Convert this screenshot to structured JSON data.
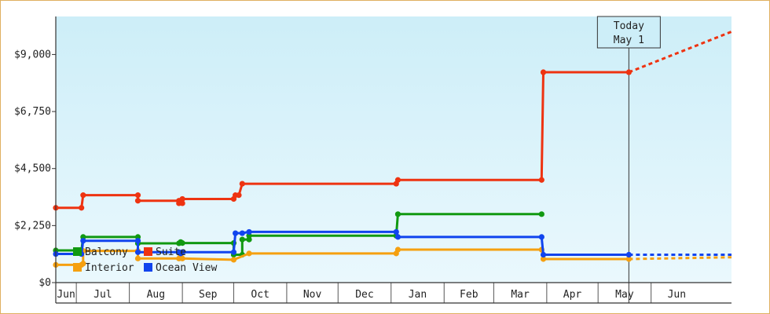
{
  "colors": {
    "background_top": "#cdeef8",
    "background_bottom": "#eaf8fd",
    "frame_border": "#e0b060",
    "axis": "#333333",
    "grid_month": "#555555"
  },
  "today_marker": {
    "line1": "Today",
    "line2": "May 1",
    "date": "2024-05-01"
  },
  "chart_data": {
    "type": "line",
    "step": true,
    "title": "",
    "xlabel": "",
    "ylabel": "",
    "x_range": [
      "2023-06-01",
      "2024-06-30"
    ],
    "ylim": [
      0,
      10500
    ],
    "yticks": [
      0,
      2250,
      4500,
      6750,
      9000
    ],
    "ytick_labels": [
      "$0",
      "$2,250",
      "$4,500",
      "$6,750",
      "$9,000"
    ],
    "months": [
      {
        "label": "Jun",
        "start": "2023-06-01",
        "end": "2023-06-13"
      },
      {
        "label": "Jul",
        "start": "2023-06-13",
        "end": "2023-07-14"
      },
      {
        "label": "Aug",
        "start": "2023-07-14",
        "end": "2023-08-14"
      },
      {
        "label": "Sep",
        "start": "2023-08-14",
        "end": "2023-09-13"
      },
      {
        "label": "Oct",
        "start": "2023-09-13",
        "end": "2023-10-14"
      },
      {
        "label": "Nov",
        "start": "2023-10-14",
        "end": "2023-11-13"
      },
      {
        "label": "Dec",
        "start": "2023-11-13",
        "end": "2023-12-14"
      },
      {
        "label": "Jan",
        "start": "2023-12-14",
        "end": "2024-01-14"
      },
      {
        "label": "Feb",
        "start": "2024-01-14",
        "end": "2024-02-12"
      },
      {
        "label": "Mar",
        "start": "2024-02-12",
        "end": "2024-03-14"
      },
      {
        "label": "Apr",
        "start": "2024-03-14",
        "end": "2024-04-13"
      },
      {
        "label": "May",
        "start": "2024-04-13",
        "end": "2024-05-14"
      },
      {
        "label": "Jun",
        "start": "2024-05-14",
        "end": "2024-06-13"
      }
    ],
    "legend": {
      "placement": "lower-left",
      "columns": 2
    },
    "series": [
      {
        "name": "Balcony",
        "color": "#119911",
        "points": [
          {
            "x": "2023-06-01",
            "y": 1270
          },
          {
            "x": "2023-06-16",
            "y": 1270
          },
          {
            "x": "2023-06-17",
            "y": 1800
          },
          {
            "x": "2023-07-19",
            "y": 1800
          },
          {
            "x": "2023-07-19",
            "y": 1550
          },
          {
            "x": "2023-08-12",
            "y": 1550
          },
          {
            "x": "2023-08-13",
            "y": 1600
          },
          {
            "x": "2023-08-14",
            "y": 1560
          },
          {
            "x": "2023-09-13",
            "y": 1560
          },
          {
            "x": "2023-09-13",
            "y": 1100
          },
          {
            "x": "2023-09-18",
            "y": 1100
          },
          {
            "x": "2023-09-18",
            "y": 1700
          },
          {
            "x": "2023-09-22",
            "y": 1700
          },
          {
            "x": "2023-09-22",
            "y": 1850
          },
          {
            "x": "2023-12-17",
            "y": 1850
          },
          {
            "x": "2023-12-18",
            "y": 2700
          },
          {
            "x": "2024-03-11",
            "y": 2700
          }
        ],
        "projection": []
      },
      {
        "name": "Suite",
        "color": "#ee3311",
        "points": [
          {
            "x": "2023-06-01",
            "y": 2950
          },
          {
            "x": "2023-06-16",
            "y": 2950
          },
          {
            "x": "2023-06-17",
            "y": 3450
          },
          {
            "x": "2023-07-19",
            "y": 3450
          },
          {
            "x": "2023-07-19",
            "y": 3230
          },
          {
            "x": "2023-08-12",
            "y": 3230
          },
          {
            "x": "2023-08-12",
            "y": 3130
          },
          {
            "x": "2023-08-14",
            "y": 3130
          },
          {
            "x": "2023-08-14",
            "y": 3300
          },
          {
            "x": "2023-09-13",
            "y": 3300
          },
          {
            "x": "2023-09-14",
            "y": 3450
          },
          {
            "x": "2023-09-16",
            "y": 3450
          },
          {
            "x": "2023-09-18",
            "y": 3900
          },
          {
            "x": "2023-12-17",
            "y": 3900
          },
          {
            "x": "2023-12-18",
            "y": 4050
          },
          {
            "x": "2024-03-11",
            "y": 4050
          },
          {
            "x": "2024-03-12",
            "y": 8300
          },
          {
            "x": "2024-05-01",
            "y": 8300
          }
        ],
        "projection": [
          {
            "x": "2024-05-01",
            "y": 8300
          },
          {
            "x": "2024-06-30",
            "y": 9900
          }
        ]
      },
      {
        "name": "Interior",
        "color": "#f5a010",
        "points": [
          {
            "x": "2023-06-01",
            "y": 700
          },
          {
            "x": "2023-06-16",
            "y": 700
          },
          {
            "x": "2023-06-17",
            "y": 750
          },
          {
            "x": "2023-06-17",
            "y": 1250
          },
          {
            "x": "2023-07-19",
            "y": 1250
          },
          {
            "x": "2023-07-19",
            "y": 950
          },
          {
            "x": "2023-08-12",
            "y": 950
          },
          {
            "x": "2023-08-13",
            "y": 1050
          },
          {
            "x": "2023-08-14",
            "y": 950
          },
          {
            "x": "2023-09-13",
            "y": 900
          },
          {
            "x": "2023-09-22",
            "y": 1150
          },
          {
            "x": "2023-12-17",
            "y": 1150
          },
          {
            "x": "2023-12-18",
            "y": 1300
          },
          {
            "x": "2024-03-11",
            "y": 1300
          },
          {
            "x": "2024-03-12",
            "y": 930
          },
          {
            "x": "2024-05-01",
            "y": 930
          }
        ],
        "projection": [
          {
            "x": "2024-05-01",
            "y": 930
          },
          {
            "x": "2024-06-30",
            "y": 1000
          }
        ]
      },
      {
        "name": "Ocean View",
        "color": "#1144ee",
        "points": [
          {
            "x": "2023-06-01",
            "y": 1130
          },
          {
            "x": "2023-06-16",
            "y": 1130
          },
          {
            "x": "2023-06-17",
            "y": 1650
          },
          {
            "x": "2023-07-19",
            "y": 1650
          },
          {
            "x": "2023-07-19",
            "y": 1200
          },
          {
            "x": "2023-08-12",
            "y": 1200
          },
          {
            "x": "2023-08-13",
            "y": 1150
          },
          {
            "x": "2023-08-14",
            "y": 1200
          },
          {
            "x": "2023-09-13",
            "y": 1200
          },
          {
            "x": "2023-09-14",
            "y": 1950
          },
          {
            "x": "2023-09-18",
            "y": 1950
          },
          {
            "x": "2023-09-22",
            "y": 2000
          },
          {
            "x": "2023-12-17",
            "y": 2000
          },
          {
            "x": "2023-12-18",
            "y": 1800
          },
          {
            "x": "2024-03-11",
            "y": 1800
          },
          {
            "x": "2024-03-12",
            "y": 1100
          },
          {
            "x": "2024-05-01",
            "y": 1100
          }
        ],
        "projection": [
          {
            "x": "2024-05-01",
            "y": 1100
          },
          {
            "x": "2024-06-30",
            "y": 1100
          }
        ]
      }
    ]
  }
}
